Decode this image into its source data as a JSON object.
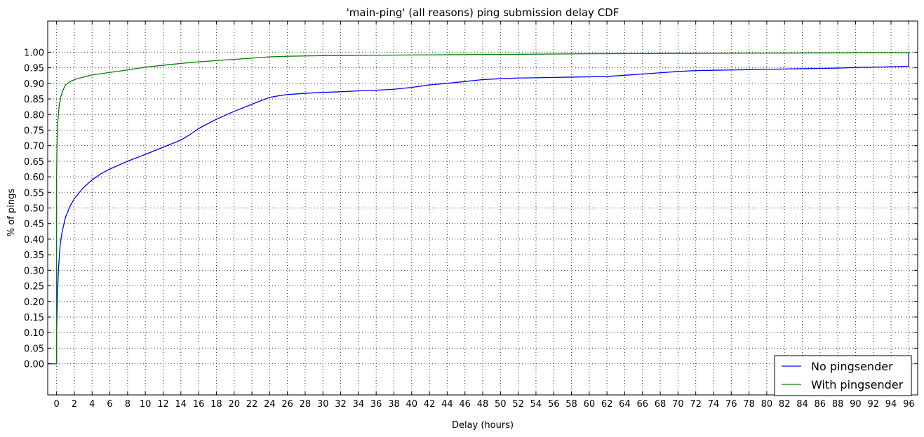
{
  "chart_data": {
    "type": "line",
    "title": "'main-ping' (all reasons) ping submission delay CDF",
    "xlabel": "Delay (hours)",
    "ylabel": "% of pings",
    "xlim": [
      -1,
      97
    ],
    "ylim": [
      -0.1,
      1.1
    ],
    "xticks": [
      0,
      2,
      4,
      6,
      8,
      10,
      12,
      14,
      16,
      18,
      20,
      22,
      24,
      26,
      28,
      30,
      32,
      34,
      36,
      38,
      40,
      42,
      44,
      46,
      48,
      50,
      52,
      54,
      56,
      58,
      60,
      62,
      64,
      66,
      68,
      70,
      72,
      74,
      76,
      78,
      80,
      82,
      84,
      86,
      88,
      90,
      92,
      94,
      96
    ],
    "yticks": [
      "0.00",
      "0.05",
      "0.10",
      "0.15",
      "0.20",
      "0.25",
      "0.30",
      "0.35",
      "0.40",
      "0.45",
      "0.50",
      "0.55",
      "0.60",
      "0.65",
      "0.70",
      "0.75",
      "0.80",
      "0.85",
      "0.90",
      "0.95",
      "1.00"
    ],
    "grid": true,
    "legend_position": "bottom-right",
    "series": [
      {
        "name": "No pingsender",
        "color": "#0000ff",
        "x": [
          -1,
          0,
          0,
          0.1,
          0.2,
          0.4,
          0.6,
          1,
          1.5,
          2,
          3,
          4,
          5,
          6,
          8,
          10,
          12,
          14,
          15,
          16,
          18,
          20,
          22,
          24,
          25,
          26,
          28,
          30,
          32,
          34,
          36,
          38,
          40,
          42,
          44,
          46,
          48,
          50,
          52,
          54,
          56,
          58,
          60,
          62,
          64,
          66,
          68,
          70,
          72,
          74,
          76,
          78,
          80,
          82,
          84,
          86,
          88,
          90,
          92,
          94,
          96,
          96
        ],
        "y": [
          0,
          0,
          0.1,
          0.22,
          0.3,
          0.38,
          0.42,
          0.47,
          0.505,
          0.53,
          0.565,
          0.59,
          0.61,
          0.625,
          0.65,
          0.672,
          0.695,
          0.718,
          0.735,
          0.755,
          0.785,
          0.81,
          0.833,
          0.855,
          0.86,
          0.864,
          0.868,
          0.871,
          0.873,
          0.876,
          0.878,
          0.881,
          0.887,
          0.895,
          0.9,
          0.906,
          0.912,
          0.915,
          0.917,
          0.918,
          0.919,
          0.92,
          0.921,
          0.922,
          0.926,
          0.93,
          0.934,
          0.938,
          0.941,
          0.942,
          0.943,
          0.944,
          0.945,
          0.946,
          0.947,
          0.948,
          0.949,
          0.951,
          0.952,
          0.953,
          0.955,
          1.0
        ]
      },
      {
        "name": "With pingsender",
        "color": "#008000",
        "x": [
          -1,
          0,
          0,
          0.05,
          0.1,
          0.2,
          0.3,
          0.5,
          0.75,
          1,
          1.5,
          2,
          3,
          4,
          6,
          8,
          10,
          12,
          14,
          16,
          18,
          20,
          22,
          24,
          26,
          28,
          30,
          40,
          50,
          60,
          70,
          80,
          90,
          96
        ],
        "y": [
          0,
          0,
          0.6,
          0.7,
          0.76,
          0.8,
          0.83,
          0.86,
          0.88,
          0.895,
          0.905,
          0.912,
          0.92,
          0.927,
          0.935,
          0.943,
          0.952,
          0.958,
          0.964,
          0.969,
          0.973,
          0.977,
          0.981,
          0.985,
          0.987,
          0.988,
          0.989,
          0.991,
          0.993,
          0.995,
          0.996,
          0.997,
          0.998,
          0.998
        ]
      }
    ]
  }
}
